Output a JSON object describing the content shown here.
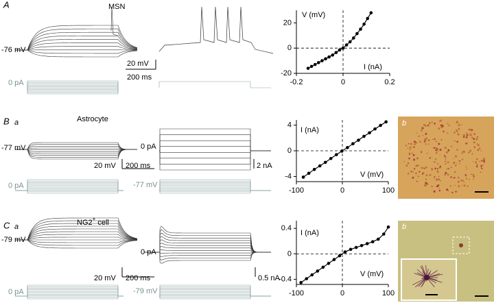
{
  "chart_data": [
    {
      "type": "line",
      "xlabel": "I (nA)",
      "ylabel": "V (mV)",
      "x": [
        -0.15,
        -0.135,
        -0.12,
        -0.105,
        -0.09,
        -0.075,
        -0.06,
        -0.045,
        -0.03,
        -0.015,
        0,
        0.015,
        0.03,
        0.045,
        0.06,
        0.075,
        0.09,
        0.105,
        0.12
      ],
      "values": [
        -16,
        -14.5,
        -13,
        -11.5,
        -10,
        -8.5,
        -7,
        -5.5,
        -3.5,
        -1.5,
        0,
        2.5,
        5,
        8,
        11.5,
        15,
        19,
        23.5,
        28
      ],
      "color": "#000000",
      "xlim": [
        -0.2,
        0.2
      ],
      "ylim": [
        -20,
        30
      ],
      "xticks": [
        -0.2,
        0,
        0.2
      ],
      "yticks": [
        -20,
        0,
        20
      ],
      "zero_lines": true
    },
    {
      "type": "line",
      "xlabel": "V (mV)",
      "ylabel": "I (nA)",
      "x": [
        -85,
        -73,
        -61,
        -49,
        -37,
        -25,
        -13,
        -1,
        11,
        23,
        35,
        47,
        59,
        71,
        83,
        95
      ],
      "values": [
        -4.1,
        -3.5,
        -2.9,
        -2.35,
        -1.8,
        -1.2,
        -0.6,
        -0.05,
        0.5,
        1.1,
        1.65,
        2.25,
        2.8,
        3.4,
        3.95,
        4.5
      ],
      "color": "#000000",
      "xlim": [
        -100,
        100
      ],
      "ylim": [
        -4.8,
        4.8
      ],
      "xticks": [
        -100,
        0,
        100
      ],
      "yticks": [
        -4,
        0,
        4
      ],
      "zero_lines": true
    },
    {
      "type": "line",
      "xlabel": "V (mV)",
      "ylabel": "I (nA)",
      "x": [
        -90,
        -78,
        -66,
        -54,
        -42,
        -30,
        -18,
        -6,
        6,
        18,
        30,
        42,
        54,
        66,
        78,
        90,
        100
      ],
      "values": [
        -0.45,
        -0.39,
        -0.33,
        -0.27,
        -0.21,
        -0.15,
        -0.09,
        -0.03,
        0.03,
        0.07,
        0.1,
        0.13,
        0.16,
        0.19,
        0.23,
        0.31,
        0.42
      ],
      "color": "#000000",
      "xlim": [
        -100,
        100
      ],
      "ylim": [
        -0.48,
        0.52
      ],
      "xticks": [
        -100,
        0,
        100
      ],
      "yticks": [
        -0.4,
        0,
        0.4
      ],
      "zero_lines": true
    }
  ],
  "panels": {
    "a": {
      "letter": "A",
      "title": "MSN",
      "rest": "-76 mV",
      "vbar": "20 mV",
      "tbar": "200 ms",
      "hold": "0 pA"
    },
    "b": {
      "letter": "B",
      "sub": "a",
      "title": "Astrocyte",
      "rest": "-77 mV",
      "hold_i": "0 pA",
      "vbar": "20 mV",
      "tbar": "200 ms",
      "ibar": "2 nA",
      "cmd_i": "0 pA",
      "cmd_v": "-77 mV",
      "image": "b"
    },
    "c": {
      "letter": "C",
      "sub": "a",
      "title": "NG2",
      "sup": "+",
      "title_rest": " cell",
      "rest": "-79 mV",
      "hold_i": "0 pA",
      "vbar": "20 mV",
      "tbar": "200 ms",
      "ibar": "0.5 nA",
      "cmd_i": "0 pA",
      "cmd_v": "-79 mV",
      "image": "b"
    }
  }
}
